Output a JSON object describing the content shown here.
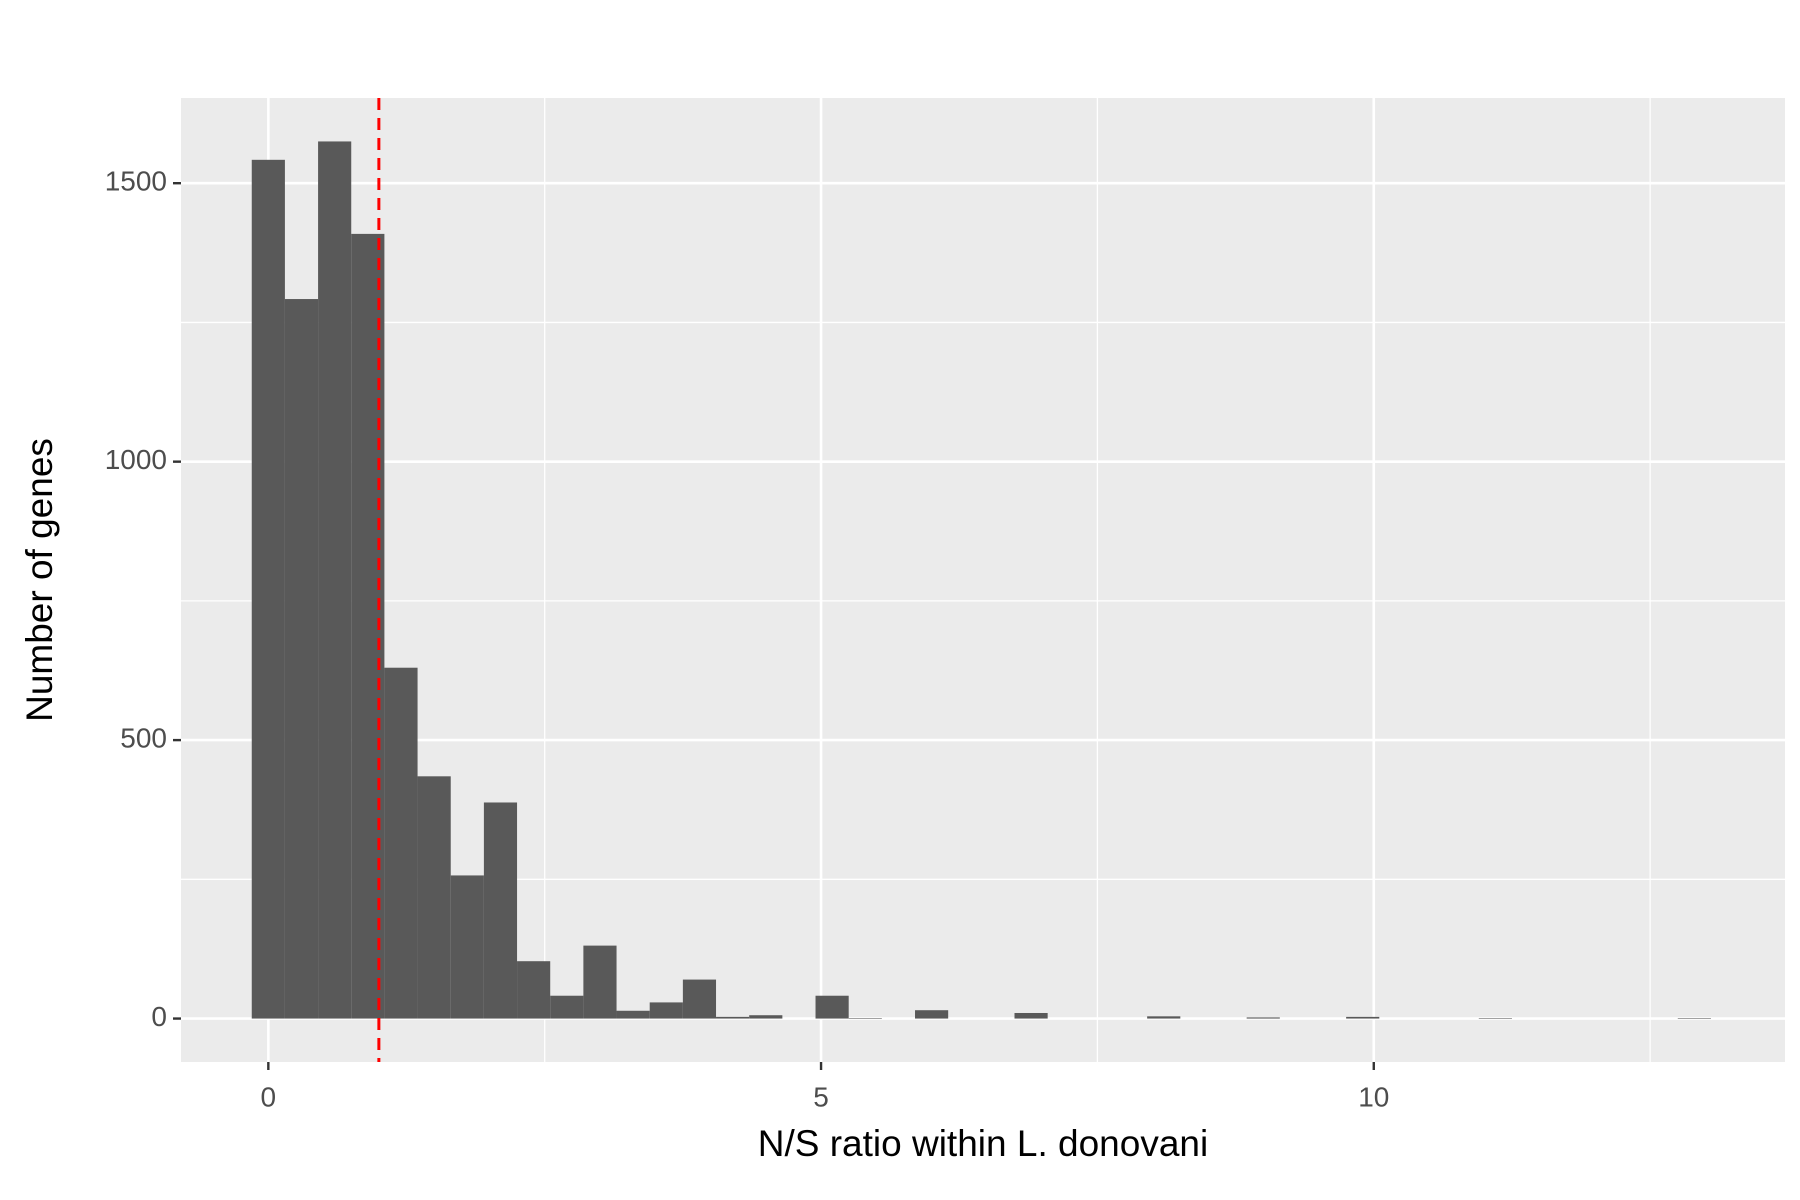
{
  "chart_data": {
    "type": "histogram",
    "xlabel": "N/S ratio within L. donovani",
    "ylabel": "Number of genes",
    "bins": [
      -0.15,
      0.15,
      0.45,
      0.75,
      1.05,
      1.35,
      1.65,
      1.95,
      2.25,
      2.55,
      2.85,
      3.15,
      3.45,
      3.75,
      4.05,
      4.35,
      4.65,
      4.95,
      5.25,
      5.55,
      5.85,
      6.15,
      6.45,
      6.75,
      7.05,
      7.35,
      7.65,
      7.95,
      8.25,
      8.55,
      8.85,
      9.15,
      9.45,
      9.75,
      10.05,
      10.35,
      10.65,
      10.95,
      11.25,
      11.55,
      11.85,
      12.15,
      12.45,
      12.75,
      13.05
    ],
    "counts": [
      1542,
      1292,
      1575,
      1409,
      630,
      435,
      257,
      388,
      103,
      41,
      131,
      14,
      29,
      70,
      3,
      6,
      0,
      41,
      1,
      0,
      15,
      0,
      0,
      10,
      0,
      0,
      0,
      4,
      0,
      0,
      2,
      0,
      0,
      3,
      0,
      0,
      0,
      1,
      0,
      0,
      0,
      0,
      0,
      1
    ],
    "color": "#595959",
    "xlim": [
      -0.79,
      13.72
    ],
    "xticks": [
      0,
      5,
      10
    ],
    "minor_xticks": [
      2.5,
      7.5,
      12.5
    ],
    "ylim": [
      -78,
      1653
    ],
    "yticks": [
      0,
      500,
      1000,
      1500
    ],
    "minor_yticks": [
      250,
      750,
      1250
    ],
    "grid": true,
    "vline": {
      "x": 1,
      "color": "#ff0000",
      "dashed": true
    }
  }
}
